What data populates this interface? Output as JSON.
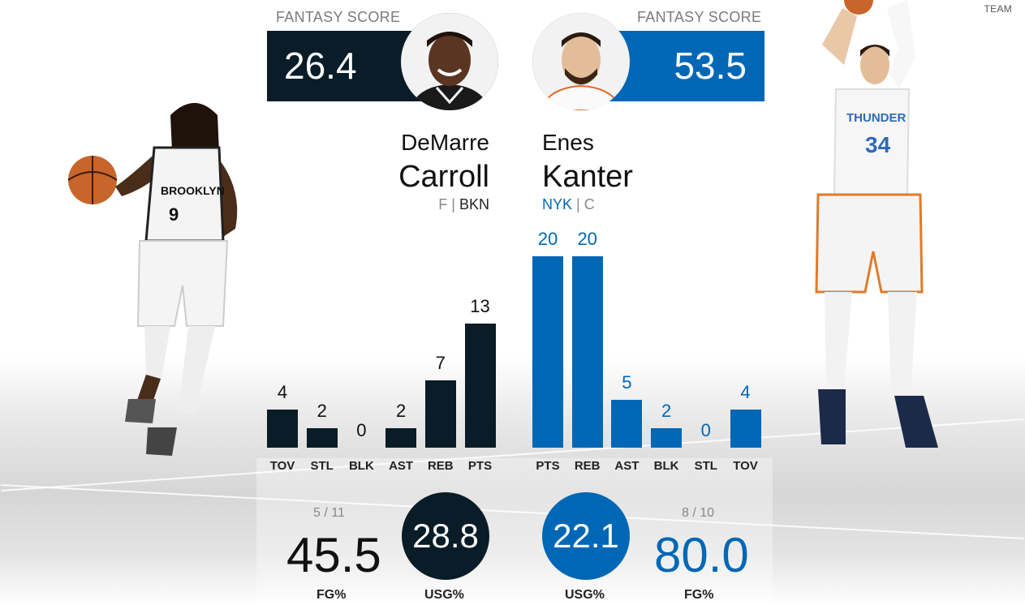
{
  "team_link": "TEAM",
  "left": {
    "fantasy_label": "FANTASY SCORE",
    "fantasy_score": "26.4",
    "first_name": "DeMarre",
    "last_name": "Carroll",
    "position": "F",
    "separator": "|",
    "team": "BKN",
    "fg_made_att": "5 / 11",
    "fg_pct": "45.5",
    "fg_label": "FG%",
    "usg": "28.8",
    "usg_label": "USG%",
    "stats": [
      {
        "cat": "TOV",
        "value": 4
      },
      {
        "cat": "STL",
        "value": 2
      },
      {
        "cat": "BLK",
        "value": 0
      },
      {
        "cat": "AST",
        "value": 2
      },
      {
        "cat": "REB",
        "value": 7
      },
      {
        "cat": "PTS",
        "value": 13
      }
    ]
  },
  "right": {
    "fantasy_label": "FANTASY SCORE",
    "fantasy_score": "53.5",
    "first_name": "Enes",
    "last_name": "Kanter",
    "team": "NYK",
    "separator": "|",
    "position": "C",
    "fg_made_att": "8 / 10",
    "fg_pct": "80.0",
    "fg_label": "FG%",
    "usg": "22.1",
    "usg_label": "USG%",
    "stats": [
      {
        "cat": "PTS",
        "value": 20
      },
      {
        "cat": "REB",
        "value": 20
      },
      {
        "cat": "AST",
        "value": 5
      },
      {
        "cat": "BLK",
        "value": 2
      },
      {
        "cat": "STL",
        "value": 0
      },
      {
        "cat": "TOV",
        "value": 4
      }
    ]
  },
  "colors": {
    "dark": "#091c27",
    "blue": "#0067b6"
  },
  "icons": {
    "left_player_photo": "player-brooklyn-dribbling",
    "right_player_photo": "player-okc-shooting",
    "left_headshot": "headshot-carroll",
    "right_headshot": "headshot-kanter"
  }
}
